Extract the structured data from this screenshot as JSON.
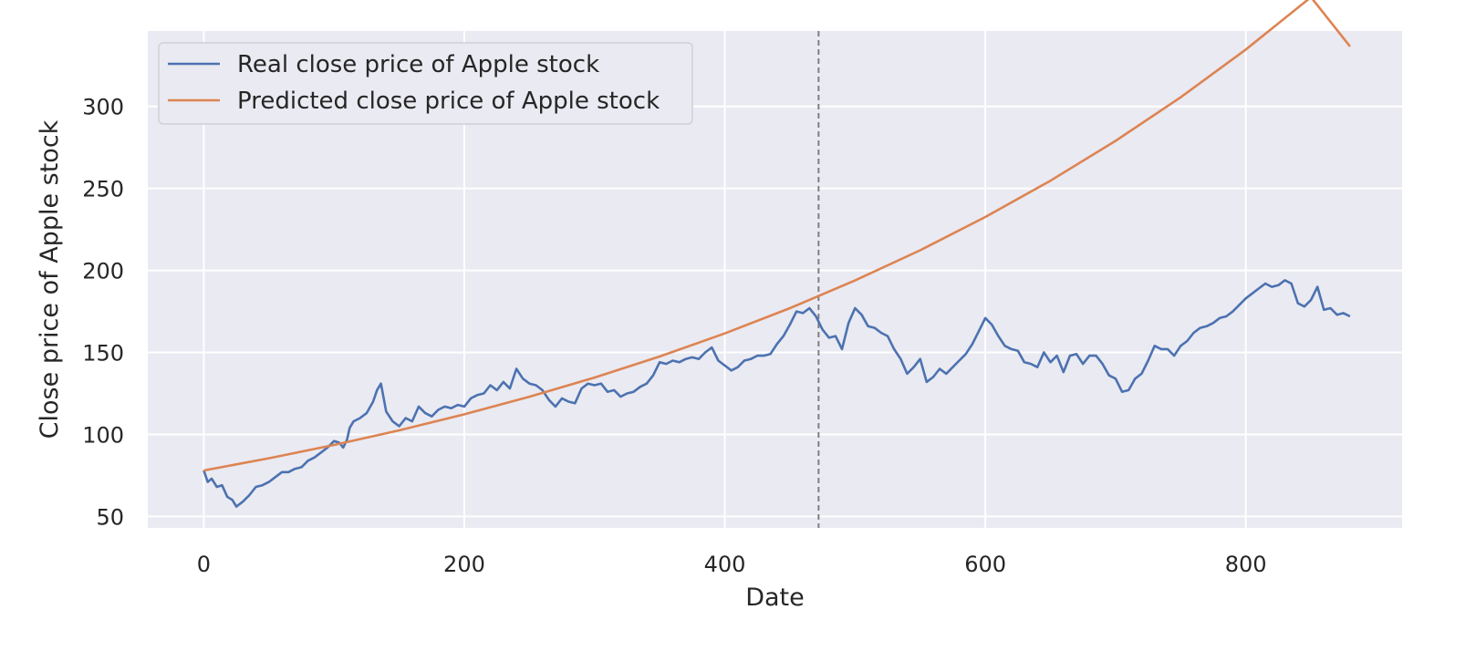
{
  "chart_data": {
    "type": "line",
    "title": "",
    "xlabel": "Date",
    "ylabel": "Close price of Apple stock",
    "xlim": [
      -43,
      920
    ],
    "ylim": [
      43,
      346
    ],
    "xticks": [
      0,
      200,
      400,
      600,
      800
    ],
    "yticks": [
      50,
      100,
      150,
      200,
      250,
      300
    ],
    "grid": true,
    "legend_position": "upper-left",
    "vertical_line": {
      "x": 472,
      "style": "dashed",
      "color": "#808080"
    },
    "colors": {
      "background": "#eaeaf2",
      "grid": "#ffffff",
      "real": "#4c72b0",
      "predicted": "#dd8452"
    },
    "series": [
      {
        "name": "Real close price of Apple stock",
        "color": "#4c72b0",
        "x": [
          0,
          3,
          6,
          10,
          14,
          18,
          22,
          25,
          30,
          35,
          40,
          45,
          50,
          55,
          60,
          65,
          70,
          75,
          80,
          85,
          90,
          95,
          100,
          104,
          107,
          110,
          112,
          115,
          120,
          125,
          130,
          133,
          136,
          140,
          145,
          150,
          155,
          160,
          165,
          170,
          175,
          180,
          185,
          190,
          195,
          200,
          205,
          210,
          215,
          220,
          225,
          230,
          235,
          240,
          245,
          250,
          255,
          260,
          265,
          270,
          275,
          280,
          285,
          290,
          295,
          300,
          305,
          310,
          315,
          320,
          325,
          330,
          335,
          340,
          345,
          350,
          355,
          360,
          365,
          370,
          375,
          380,
          385,
          390,
          395,
          400,
          405,
          410,
          415,
          420,
          425,
          430,
          435,
          440,
          445,
          450,
          455,
          460,
          465,
          470,
          475,
          480,
          485,
          490,
          495,
          500,
          505,
          510,
          515,
          520,
          525,
          530,
          535,
          540,
          545,
          550,
          555,
          560,
          565,
          570,
          575,
          580,
          585,
          590,
          595,
          600,
          605,
          610,
          615,
          620,
          625,
          630,
          635,
          640,
          645,
          650,
          655,
          660,
          665,
          670,
          675,
          680,
          685,
          690,
          695,
          700,
          705,
          710,
          715,
          720,
          725,
          730,
          735,
          740,
          745,
          750,
          755,
          760,
          765,
          770,
          775,
          780,
          785,
          790,
          795,
          800,
          805,
          810,
          815,
          820,
          825,
          830,
          835,
          840,
          845,
          850,
          855,
          860,
          865,
          870,
          875,
          880
        ],
        "values": [
          78,
          71,
          73,
          68,
          69,
          62,
          60,
          56,
          59,
          63,
          68,
          69,
          71,
          74,
          77,
          77,
          79,
          80,
          84,
          86,
          89,
          92,
          96,
          95,
          92,
          97,
          104,
          108,
          110,
          113,
          120,
          127,
          131,
          114,
          108,
          105,
          110,
          108,
          117,
          113,
          111,
          115,
          117,
          116,
          118,
          117,
          122,
          124,
          125,
          130,
          127,
          132,
          128,
          140,
          134,
          131,
          130,
          127,
          121,
          117,
          122,
          120,
          119,
          128,
          131,
          130,
          131,
          126,
          127,
          123,
          125,
          126,
          129,
          131,
          136,
          144,
          143,
          145,
          144,
          146,
          147,
          146,
          150,
          153,
          145,
          142,
          139,
          141,
          145,
          146,
          148,
          148,
          149,
          155,
          160,
          167,
          175,
          174,
          177,
          172,
          164,
          159,
          160,
          152,
          168,
          177,
          173,
          166,
          165,
          162,
          160,
          152,
          146,
          137,
          141,
          146,
          132,
          135,
          140,
          137,
          141,
          145,
          149,
          155,
          163,
          171,
          167,
          160,
          154,
          152,
          151,
          144,
          143,
          141,
          150,
          144,
          148,
          138,
          148,
          149,
          143,
          148,
          148,
          143,
          136,
          134,
          126,
          127,
          134,
          137,
          145,
          154,
          152,
          152,
          148,
          154,
          157,
          162,
          165,
          166,
          168,
          171,
          172,
          175,
          179,
          183,
          186,
          189,
          192,
          190,
          191,
          194,
          192,
          180,
          178,
          182,
          190,
          176,
          177,
          173,
          174,
          172
        ]
      },
      {
        "name": "Predicted close price of Apple stock",
        "color": "#dd8452",
        "x": [
          0,
          50,
          100,
          150,
          200,
          250,
          300,
          350,
          400,
          450,
          500,
          550,
          600,
          650,
          700,
          750,
          800,
          850,
          880
        ],
        "values": [
          78,
          85.5,
          93.6,
          102.5,
          112.3,
          123,
          134.7,
          147.5,
          161.6,
          177,
          193.9,
          212.3,
          232.6,
          254.7,
          279,
          305.6,
          334.7,
          366.6,
          336.6
        ]
      }
    ]
  }
}
